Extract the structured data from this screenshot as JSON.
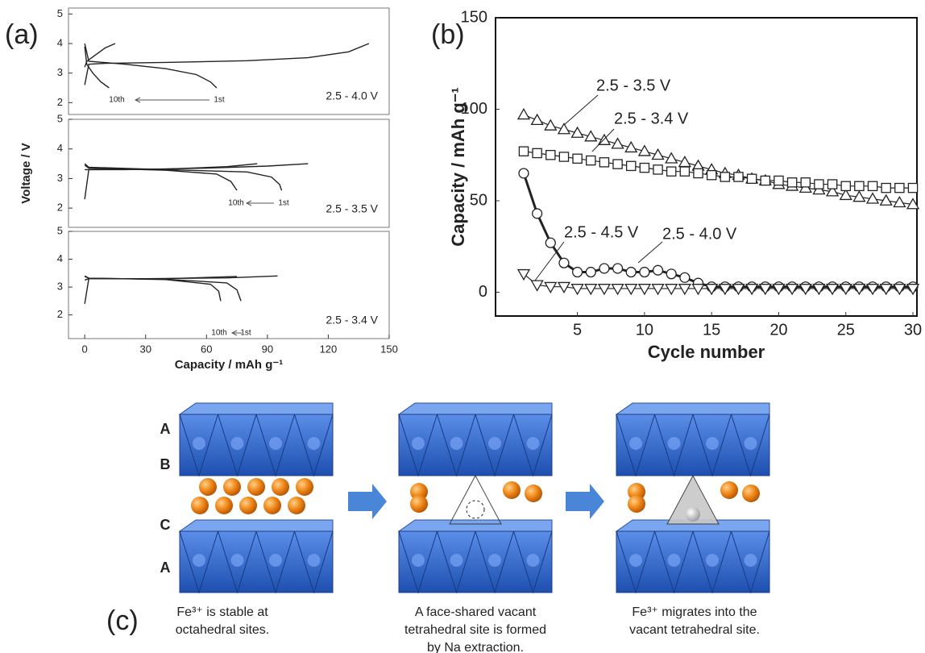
{
  "chart_data": [
    {
      "type": "line",
      "panel_label": "(a)",
      "color": "#222222",
      "xlim": [
        -8,
        150
      ],
      "ylim": [
        1.6,
        5.2
      ],
      "yticks": [
        2,
        3,
        4,
        5
      ],
      "annotation": "2.5 - 4.0 V",
      "first_label": "1st",
      "last_label": "10th",
      "series": [
        {
          "x": [
            0,
            2,
            10,
            40,
            80,
            110,
            130,
            140
          ],
          "values": [
            2.6,
            3.3,
            3.33,
            3.36,
            3.42,
            3.52,
            3.72,
            4.0
          ]
        },
        {
          "x": [
            0,
            2,
            20,
            40,
            55,
            62,
            65
          ],
          "values": [
            4.0,
            3.4,
            3.3,
            3.15,
            2.95,
            2.7,
            2.5
          ]
        },
        {
          "x": [
            0,
            1,
            5,
            10,
            15
          ],
          "values": [
            3.2,
            3.4,
            3.6,
            3.85,
            4.0
          ]
        },
        {
          "x": [
            0,
            1,
            4,
            8,
            12
          ],
          "values": [
            3.9,
            3.3,
            3.0,
            2.7,
            2.5
          ]
        }
      ]
    },
    {
      "type": "line",
      "color": "#222222",
      "xlim": [
        -8,
        150
      ],
      "ylim": [
        1.35,
        5
      ],
      "yticks": [
        2,
        3,
        4,
        5
      ],
      "ylabel": "Voltage / V",
      "annotation": "2.5 - 3.5 V",
      "first_label": "1st",
      "last_label": "10th",
      "series": [
        {
          "x": [
            0,
            2,
            20,
            60,
            90,
            110
          ],
          "values": [
            2.3,
            3.3,
            3.3,
            3.35,
            3.42,
            3.5
          ]
        },
        {
          "x": [
            0,
            2,
            40,
            80,
            92,
            96,
            97
          ],
          "values": [
            3.5,
            3.38,
            3.3,
            3.22,
            3.05,
            2.8,
            2.6
          ]
        },
        {
          "x": [
            0,
            2,
            40,
            70,
            85
          ],
          "values": [
            3.3,
            3.3,
            3.32,
            3.4,
            3.5
          ]
        },
        {
          "x": [
            0,
            2,
            40,
            65,
            72,
            75
          ],
          "values": [
            3.45,
            3.35,
            3.28,
            3.15,
            2.9,
            2.6
          ]
        }
      ]
    },
    {
      "type": "line",
      "color": "#222222",
      "xlim": [
        -8,
        150
      ],
      "ylim": [
        1.15,
        5
      ],
      "yticks": [
        2,
        3,
        4,
        5
      ],
      "xticks": [
        0,
        30,
        60,
        90,
        120,
        150
      ],
      "xlabel": "Capacity / mAh g⁻¹",
      "annotation": "2.5 - 3.4 V",
      "first_label": "1st",
      "last_label": "10th",
      "series": [
        {
          "x": [
            0,
            2,
            30,
            70,
            95
          ],
          "values": [
            2.4,
            3.3,
            3.3,
            3.33,
            3.4
          ]
        },
        {
          "x": [
            0,
            2,
            40,
            70,
            75,
            77
          ],
          "values": [
            3.4,
            3.32,
            3.28,
            3.15,
            2.9,
            2.5
          ]
        },
        {
          "x": [
            0,
            2,
            40,
            75
          ],
          "values": [
            3.25,
            3.3,
            3.3,
            3.38
          ]
        },
        {
          "x": [
            0,
            2,
            40,
            62,
            66,
            67
          ],
          "values": [
            3.38,
            3.32,
            3.27,
            3.1,
            2.85,
            2.5
          ]
        }
      ]
    },
    {
      "type": "marker-line",
      "panel_label": "(b)",
      "xlabel": "Cycle number",
      "ylabel": "Capacity / mAh g⁻¹",
      "xlim": [
        -1.1,
        30.3
      ],
      "ylim": [
        -13,
        150
      ],
      "xticks": [
        5,
        10,
        15,
        20,
        25,
        30
      ],
      "yticks": [
        0,
        50,
        100,
        150
      ],
      "x": [
        1,
        2,
        3,
        4,
        5,
        6,
        7,
        8,
        9,
        10,
        11,
        12,
        13,
        14,
        15,
        16,
        17,
        18,
        19,
        20,
        21,
        22,
        23,
        24,
        25,
        26,
        27,
        28,
        29,
        30
      ],
      "series": [
        {
          "name": "2.5 - 3.5 V",
          "color": "#222222",
          "marker": "triangle-up",
          "line_width": 1.2,
          "values": [
            97,
            94,
            91,
            89,
            87,
            85,
            83,
            81,
            79,
            77,
            75,
            73,
            71,
            69,
            67,
            65,
            64,
            62,
            61,
            59,
            58,
            57,
            56,
            55,
            53,
            52,
            51,
            50,
            49,
            48
          ]
        },
        {
          "name": "2.5 - 3.4 V",
          "color": "#222222",
          "marker": "square",
          "line_width": 1.2,
          "values": [
            77,
            76,
            75,
            74,
            73,
            72,
            71,
            70,
            69,
            68,
            67,
            66,
            66,
            65,
            64,
            63,
            63,
            62,
            61,
            61,
            60,
            60,
            59,
            59,
            58,
            58,
            58,
            57,
            57,
            57
          ]
        },
        {
          "name": "2.5 - 4.0 V",
          "color": "#222222",
          "marker": "circle",
          "line_width": 3,
          "values": [
            65,
            43,
            27,
            16,
            11,
            11,
            13,
            13,
            11,
            11,
            12,
            10,
            8,
            5,
            3,
            3,
            3,
            3,
            3,
            3,
            3,
            3,
            3,
            3,
            3,
            3,
            3,
            3,
            3,
            3
          ]
        },
        {
          "name": "2.5 - 4.5 V",
          "color": "#222222",
          "marker": "triangle-down",
          "line_width": 1.2,
          "values": [
            10,
            4,
            3,
            3,
            2,
            2,
            2,
            2,
            2,
            2,
            2,
            2,
            2,
            2,
            2,
            2,
            2,
            2,
            2,
            2,
            2,
            2,
            2,
            2,
            2,
            2,
            2,
            2,
            2,
            2
          ]
        }
      ]
    }
  ],
  "diagram": {
    "panel_label": "(c)",
    "layer_labels": [
      "A",
      "B",
      "C",
      "A"
    ],
    "captions": [
      [
        "Fe³⁺ is stable at",
        "octahedral sites."
      ],
      [
        "A face-shared vacant",
        "tetrahedral site is formed",
        "by Na extraction."
      ],
      [
        "Fe³⁺ migrates into the",
        "vacant tetrahedral site."
      ]
    ]
  }
}
